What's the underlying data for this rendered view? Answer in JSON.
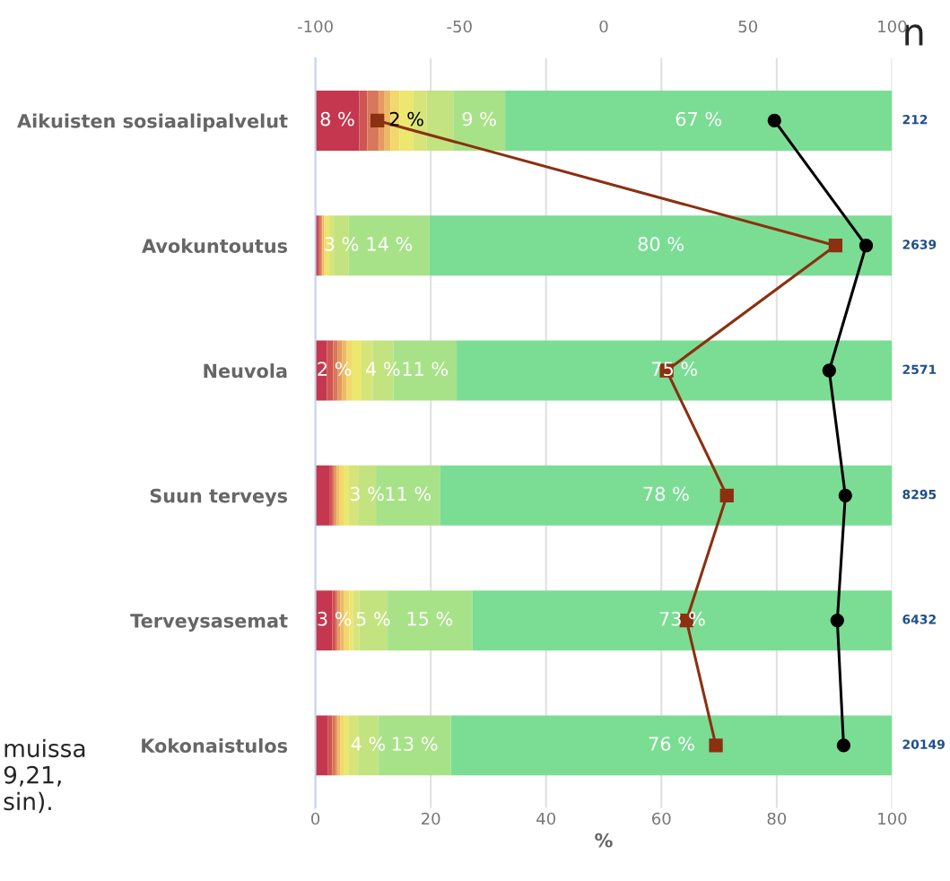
{
  "chart_data": {
    "type": "bar",
    "orientation": "horizontal",
    "stacked": true,
    "xlabel": "%",
    "categories": [
      "Aikuisten sosiaalipalvelut",
      "Avokuntoutus",
      "Neuvola",
      "Suun terveys",
      "Terveysasemat",
      "Kokonaistulos"
    ],
    "xlim": [
      0,
      100
    ],
    "xticks": [
      0,
      20,
      40,
      60,
      80,
      100
    ],
    "x2lim": [
      -100,
      100
    ],
    "x2ticks": [
      -100,
      -50,
      0,
      50,
      100
    ],
    "grid": "x",
    "series": [
      {
        "color": "#c4374f",
        "values": [
          7.6,
          0.5,
          2.0,
          2.4,
          2.9,
          2.2
        ],
        "value_labels": [
          "8 %",
          null,
          "2 %",
          null,
          "3 %",
          null
        ]
      },
      {
        "color": "#cf5552",
        "values": [
          1.4,
          0.2,
          1.1,
          0.6,
          0.6,
          0.7
        ]
      },
      {
        "color": "#d8785a",
        "values": [
          2.0,
          0.3,
          0.8,
          0.3,
          0.4,
          0.6
        ]
      },
      {
        "color": "#e49a5f",
        "values": [
          1.0,
          0.2,
          0.7,
          0.4,
          0.4,
          0.4
        ]
      },
      {
        "color": "#ecb965",
        "values": [
          1.0,
          0.3,
          0.8,
          0.4,
          0.7,
          0.4
        ]
      },
      {
        "color": "#f2d86a",
        "values": [
          1.6,
          0.4,
          0.9,
          0.8,
          0.9,
          0.6
        ]
      },
      {
        "color": "#ebe76f",
        "values": [
          2.4,
          0.5,
          1.7,
          0.9,
          0.6,
          0.8
        ],
        "value_labels": [
          "2 %",
          null,
          null,
          null,
          null,
          null
        ]
      },
      {
        "color": "#d6e479",
        "values": [
          2.3,
          0.8,
          1.9,
          1.6,
          1.1,
          1.7
        ]
      },
      {
        "color": "#c2e37f",
        "values": [
          4.6,
          2.6,
          3.6,
          3.1,
          4.8,
          3.5
        ],
        "value_labels": [
          null,
          "3 %",
          "4 %",
          "3 %",
          "5 %",
          "4 %"
        ]
      },
      {
        "color": "#a8e288",
        "values": [
          9.0,
          14.0,
          11.0,
          11.1,
          14.8,
          12.6
        ],
        "value_labels": [
          "9 %",
          "14 %",
          "11 %",
          "11 %",
          "15 %",
          "13 %"
        ]
      },
      {
        "color": "#7bdd94",
        "values": [
          67.1,
          80.2,
          75.5,
          78.4,
          72.8,
          76.5
        ],
        "value_labels": [
          "67 %",
          "80 %",
          "75 %",
          "78 %",
          "73 %",
          "76 %"
        ]
      },
      {
        "type": "line",
        "axis": "x2",
        "color": "#000000",
        "marker": "circle",
        "values": [
          59.2,
          91.0,
          78.2,
          83.8,
          81.0,
          83.2
        ]
      },
      {
        "type": "line",
        "axis": "x2",
        "color": "#8b3010",
        "marker": "square",
        "values": [
          -78.5,
          80.4,
          21.8,
          42.7,
          28.7,
          38.9
        ]
      }
    ],
    "annotations": [
      "n",
      "212",
      "2639",
      "2571",
      "8295",
      "6432",
      "20149",
      "muissa\n9,21,\nsin)."
    ]
  }
}
